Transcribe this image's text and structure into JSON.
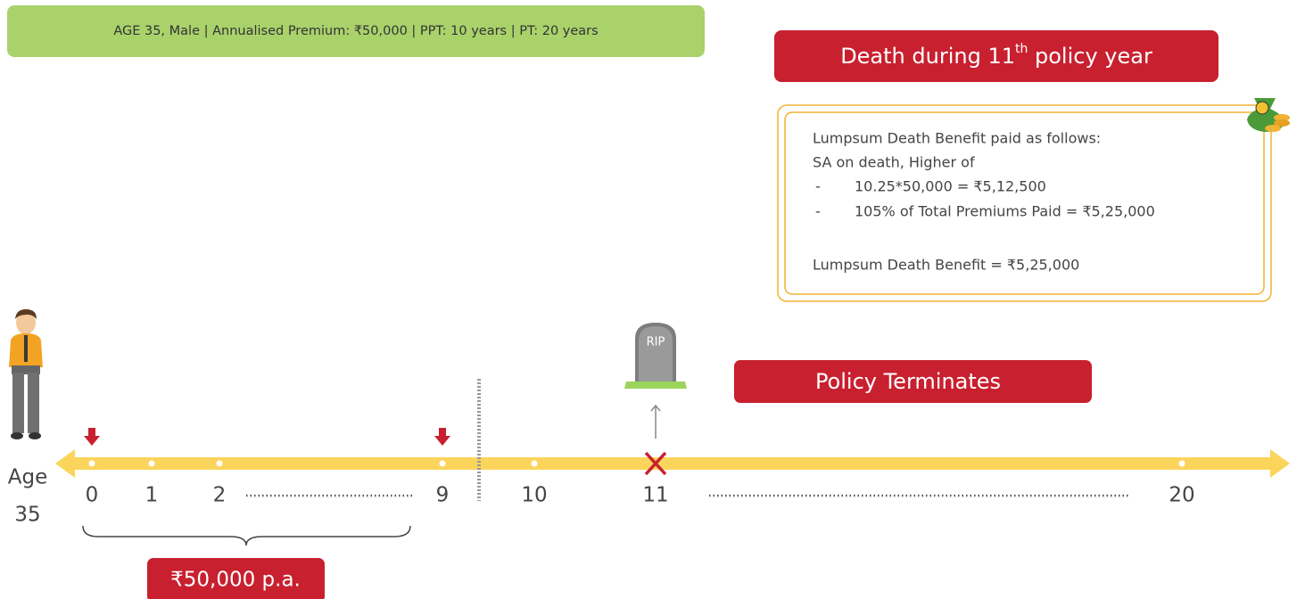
{
  "banner": {
    "text": "AGE 35, Male | Annualised Premium: ₹50,000 | PPT: 10 years | PT: 20 years"
  },
  "death_heading": {
    "prefix": "Death during 11",
    "superscript": "th",
    "suffix": " policy year"
  },
  "benefit_box": {
    "intro": "Lumpsum Death Benefit paid as follows:",
    "condition": "SA on death, Higher of",
    "options": [
      {
        "marker": "-",
        "text": "10.25*50,000 = ₹5,12,500"
      },
      {
        "marker": "-",
        "text": "105% of Total Premiums Paid = ₹5,25,000"
      }
    ],
    "result": "Lumpsum Death Benefit = ₹5,25,000"
  },
  "tombstone": {
    "label": "RIP"
  },
  "termination": {
    "label": "Policy Terminates"
  },
  "timeline": {
    "age_label": "Age",
    "age_value": "35",
    "points": [
      "0",
      "1",
      "2",
      "9",
      "10",
      "11",
      "20"
    ]
  },
  "premium": {
    "label": "₹50,000 p.a."
  }
}
